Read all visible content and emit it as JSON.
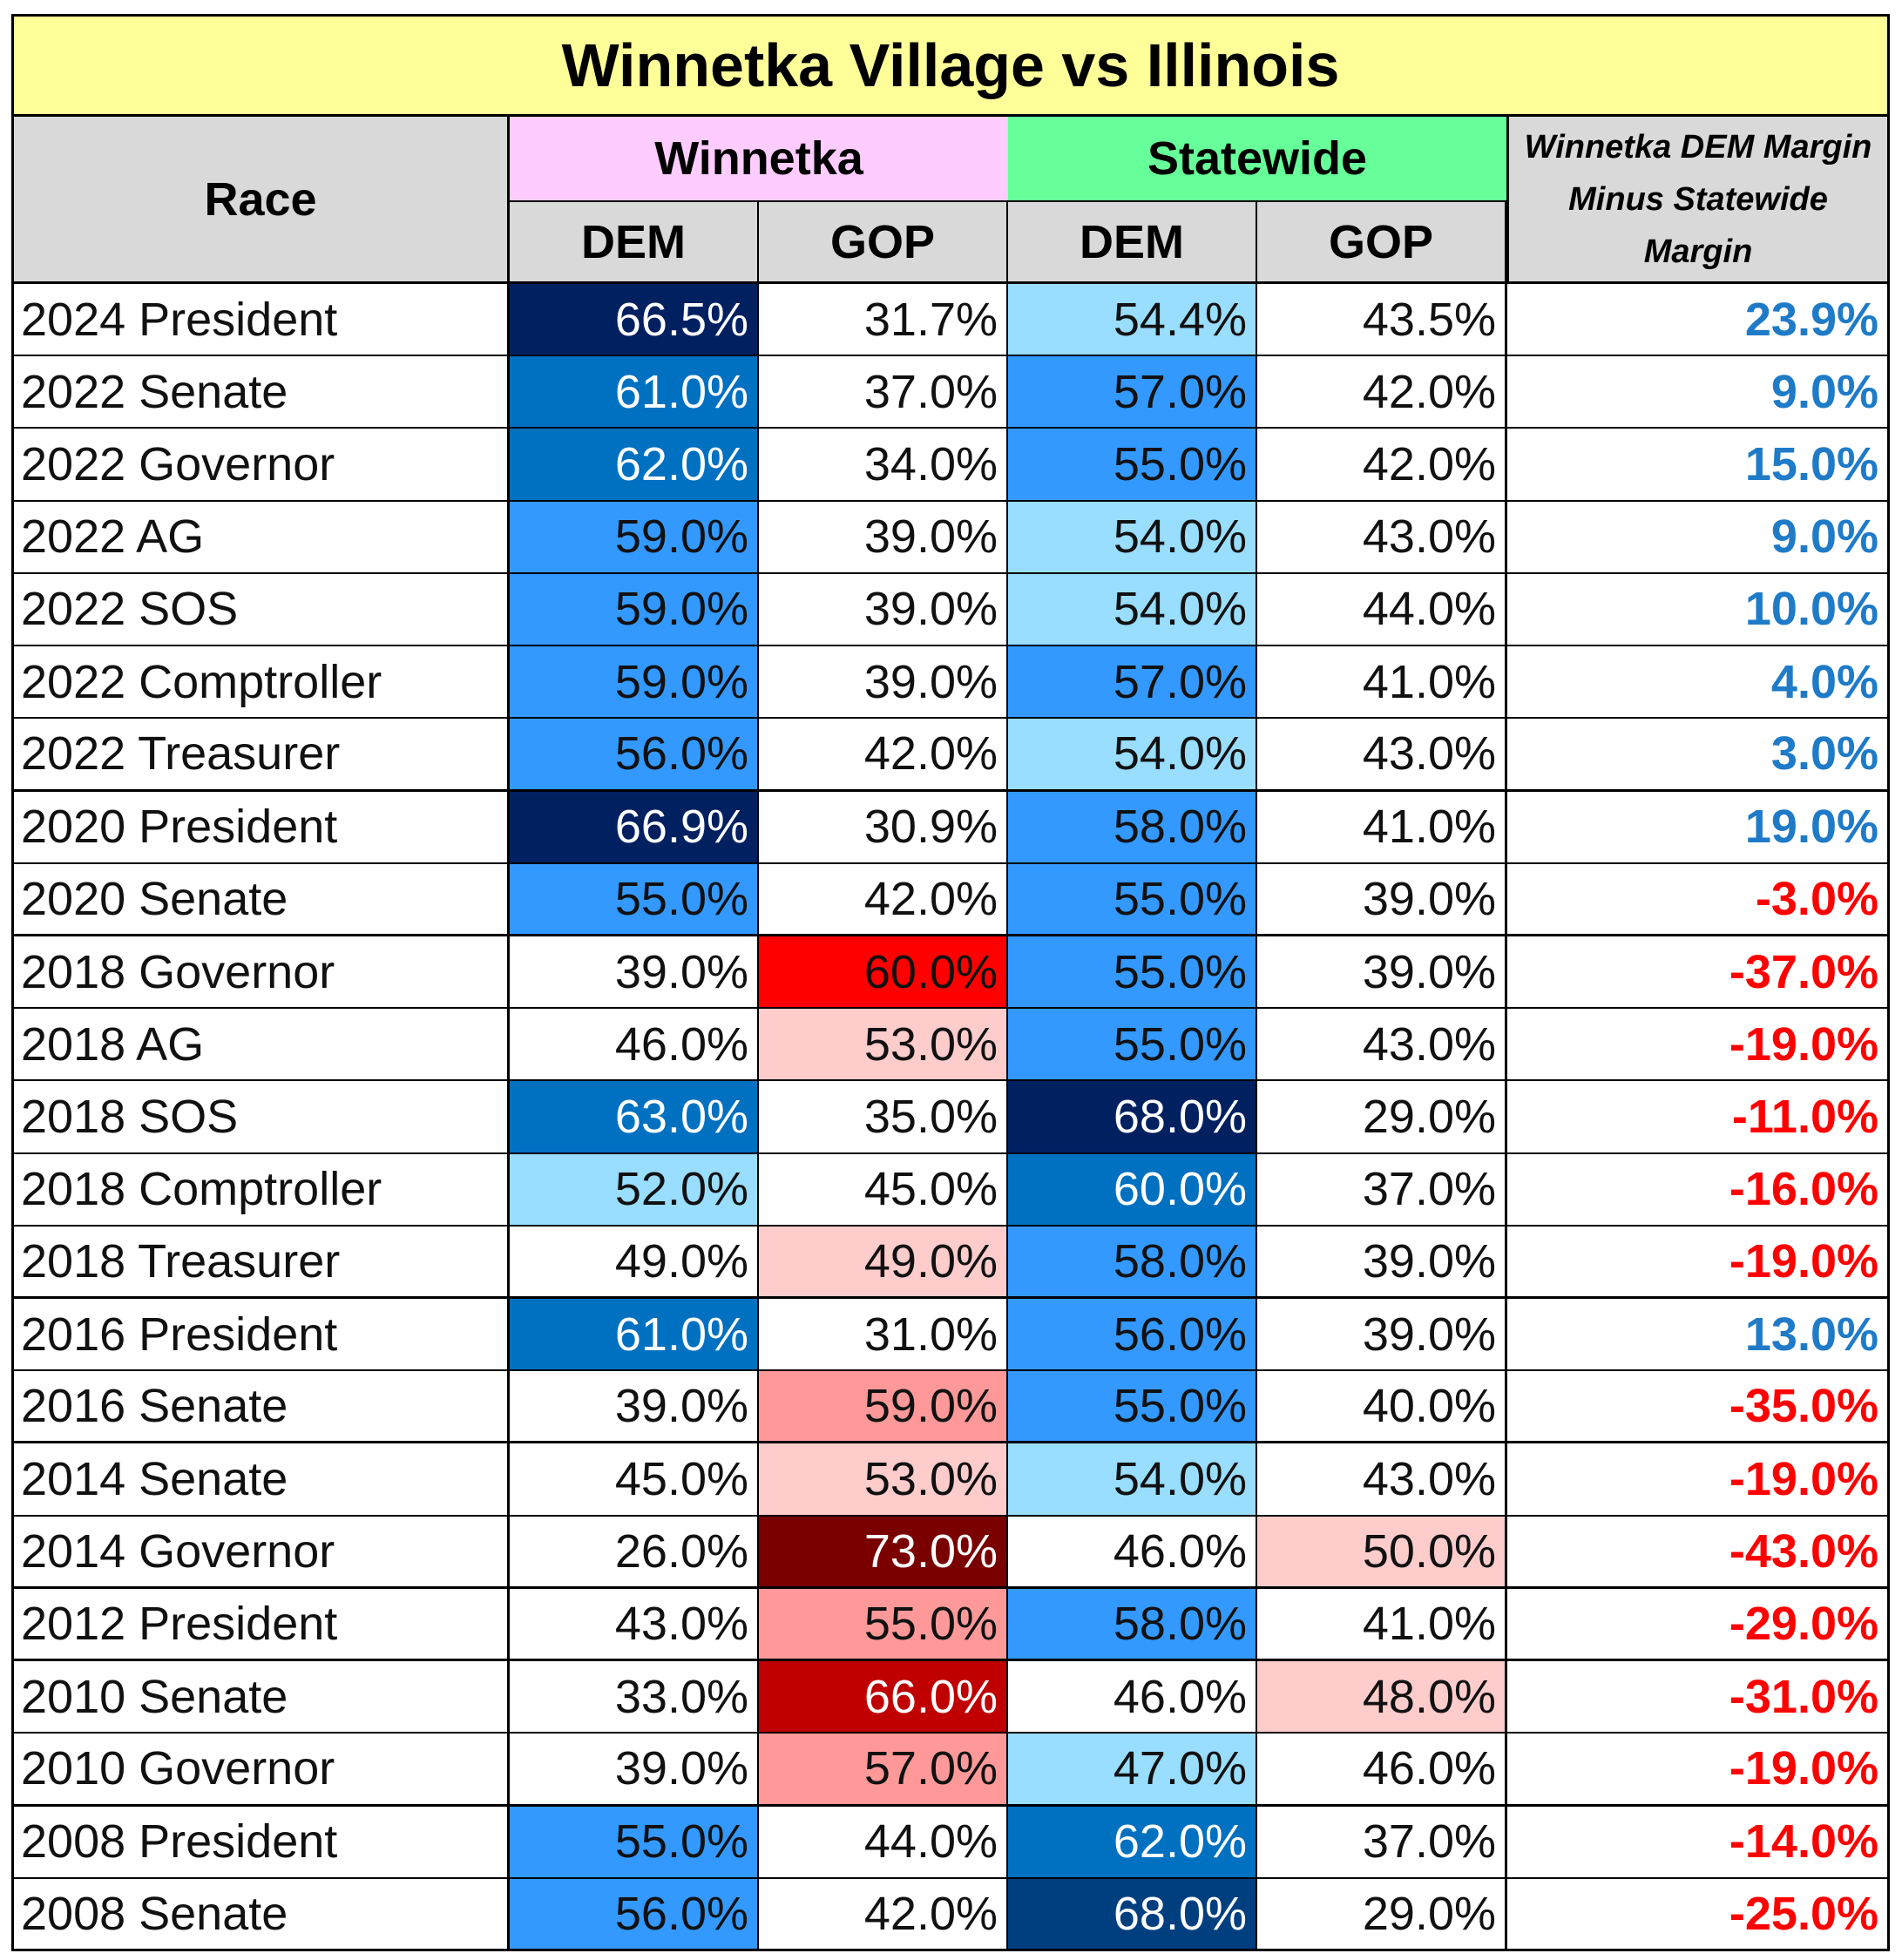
{
  "title": "Winnetka Village vs Illinois",
  "headers": {
    "race": "Race",
    "winnetka": "Winnetka",
    "statewide": "Statewide",
    "dem": "DEM",
    "gop": "GOP",
    "margin_line1": "Winnetka DEM Margin",
    "margin_line2": "Minus Statewide",
    "margin_line3": "Margin"
  },
  "colors": {
    "title_bg": "#ffff99",
    "winnetka_header_bg": "#ffccff",
    "statewide_header_bg": "#66ff99",
    "header_bg": "#d9d9d9",
    "positive_margin": "#1f7bc8",
    "negative_margin": "#ff0000"
  },
  "chart_data": {
    "type": "table",
    "title": "Winnetka Village vs Illinois",
    "columns": [
      "Race",
      "Winnetka DEM",
      "Winnetka GOP",
      "Statewide DEM",
      "Statewide GOP",
      "Winnetka DEM Margin Minus Statewide Margin"
    ],
    "rows": [
      {
        "race": "2024 President",
        "w_dem": "66.5%",
        "w_gop": "31.7%",
        "s_dem": "54.4%",
        "s_gop": "43.5%",
        "margin": "23.9%",
        "fills": [
          "#002060",
          "#ffffff",
          "#99ddff",
          "#ffffff"
        ]
      },
      {
        "race": "2022 Senate",
        "w_dem": "61.0%",
        "w_gop": "37.0%",
        "s_dem": "57.0%",
        "s_gop": "42.0%",
        "margin": "9.0%",
        "fills": [
          "#0070c0",
          "#ffffff",
          "#3399ff",
          "#ffffff"
        ]
      },
      {
        "race": "2022 Governor",
        "w_dem": "62.0%",
        "w_gop": "34.0%",
        "s_dem": "55.0%",
        "s_gop": "42.0%",
        "margin": "15.0%",
        "fills": [
          "#0070c0",
          "#ffffff",
          "#3399ff",
          "#ffffff"
        ]
      },
      {
        "race": "2022 AG",
        "w_dem": "59.0%",
        "w_gop": "39.0%",
        "s_dem": "54.0%",
        "s_gop": "43.0%",
        "margin": "9.0%",
        "fills": [
          "#3399ff",
          "#ffffff",
          "#99ddff",
          "#ffffff"
        ]
      },
      {
        "race": "2022 SOS",
        "w_dem": "59.0%",
        "w_gop": "39.0%",
        "s_dem": "54.0%",
        "s_gop": "44.0%",
        "margin": "10.0%",
        "fills": [
          "#3399ff",
          "#ffffff",
          "#99ddff",
          "#ffffff"
        ]
      },
      {
        "race": "2022 Comptroller",
        "w_dem": "59.0%",
        "w_gop": "39.0%",
        "s_dem": "57.0%",
        "s_gop": "41.0%",
        "margin": "4.0%",
        "fills": [
          "#3399ff",
          "#ffffff",
          "#3399ff",
          "#ffffff"
        ]
      },
      {
        "race": "2022 Treasurer",
        "w_dem": "56.0%",
        "w_gop": "42.0%",
        "s_dem": "54.0%",
        "s_gop": "43.0%",
        "margin": "3.0%",
        "fills": [
          "#3399ff",
          "#ffffff",
          "#99ddff",
          "#ffffff"
        ],
        "group_end": true
      },
      {
        "race": "2020 President",
        "w_dem": "66.9%",
        "w_gop": "30.9%",
        "s_dem": "58.0%",
        "s_gop": "41.0%",
        "margin": "19.0%",
        "fills": [
          "#002060",
          "#ffffff",
          "#3399ff",
          "#ffffff"
        ]
      },
      {
        "race": "2020 Senate",
        "w_dem": "55.0%",
        "w_gop": "42.0%",
        "s_dem": "55.0%",
        "s_gop": "39.0%",
        "margin": "-3.0%",
        "fills": [
          "#3399ff",
          "#ffffff",
          "#3399ff",
          "#ffffff"
        ],
        "group_end": true
      },
      {
        "race": "2018 Governor",
        "w_dem": "39.0%",
        "w_gop": "60.0%",
        "s_dem": "55.0%",
        "s_gop": "39.0%",
        "margin": "-37.0%",
        "fills": [
          "#ffffff",
          "#ff0000",
          "#3399ff",
          "#ffffff"
        ]
      },
      {
        "race": "2018 AG",
        "w_dem": "46.0%",
        "w_gop": "53.0%",
        "s_dem": "55.0%",
        "s_gop": "43.0%",
        "margin": "-19.0%",
        "fills": [
          "#ffffff",
          "#ffcccc",
          "#3399ff",
          "#ffffff"
        ]
      },
      {
        "race": "2018 SOS",
        "w_dem": "63.0%",
        "w_gop": "35.0%",
        "s_dem": "68.0%",
        "s_gop": "29.0%",
        "margin": "-11.0%",
        "fills": [
          "#0070c0",
          "#ffffff",
          "#002060",
          "#ffffff"
        ]
      },
      {
        "race": "2018 Comptroller",
        "w_dem": "52.0%",
        "w_gop": "45.0%",
        "s_dem": "60.0%",
        "s_gop": "37.0%",
        "margin": "-16.0%",
        "fills": [
          "#99ddff",
          "#ffffff",
          "#0070c0",
          "#ffffff"
        ]
      },
      {
        "race": "2018 Treasurer",
        "w_dem": "49.0%",
        "w_gop": "49.0%",
        "s_dem": "58.0%",
        "s_gop": "39.0%",
        "margin": "-19.0%",
        "fills": [
          "#ffffff",
          "#ffcccc",
          "#3399ff",
          "#ffffff"
        ],
        "group_end": true
      },
      {
        "race": "2016 President",
        "w_dem": "61.0%",
        "w_gop": "31.0%",
        "s_dem": "56.0%",
        "s_gop": "39.0%",
        "margin": "13.0%",
        "fills": [
          "#0070c0",
          "#ffffff",
          "#3399ff",
          "#ffffff"
        ]
      },
      {
        "race": "2016 Senate",
        "w_dem": "39.0%",
        "w_gop": "59.0%",
        "s_dem": "55.0%",
        "s_gop": "40.0%",
        "margin": "-35.0%",
        "fills": [
          "#ffffff",
          "#ff9999",
          "#3399ff",
          "#ffffff"
        ],
        "group_end": true
      },
      {
        "race": "2014 Senate",
        "w_dem": "45.0%",
        "w_gop": "53.0%",
        "s_dem": "54.0%",
        "s_gop": "43.0%",
        "margin": "-19.0%",
        "fills": [
          "#ffffff",
          "#ffcccc",
          "#99ddff",
          "#ffffff"
        ]
      },
      {
        "race": "2014 Governor",
        "w_dem": "26.0%",
        "w_gop": "73.0%",
        "s_dem": "46.0%",
        "s_gop": "50.0%",
        "margin": "-43.0%",
        "fills": [
          "#ffffff",
          "#7a0000",
          "#ffffff",
          "#ffcccc"
        ],
        "group_end": true
      },
      {
        "race": "2012 President",
        "w_dem": "43.0%",
        "w_gop": "55.0%",
        "s_dem": "58.0%",
        "s_gop": "41.0%",
        "margin": "-29.0%",
        "fills": [
          "#ffffff",
          "#ff9999",
          "#3399ff",
          "#ffffff"
        ],
        "group_end": true
      },
      {
        "race": "2010 Senate",
        "w_dem": "33.0%",
        "w_gop": "66.0%",
        "s_dem": "46.0%",
        "s_gop": "48.0%",
        "margin": "-31.0%",
        "fills": [
          "#ffffff",
          "#c00000",
          "#ffffff",
          "#ffcccc"
        ]
      },
      {
        "race": "2010 Governor",
        "w_dem": "39.0%",
        "w_gop": "57.0%",
        "s_dem": "47.0%",
        "s_gop": "46.0%",
        "margin": "-19.0%",
        "fills": [
          "#ffffff",
          "#ff9999",
          "#99ddff",
          "#ffffff"
        ],
        "group_end": true
      },
      {
        "race": "2008 President",
        "w_dem": "55.0%",
        "w_gop": "44.0%",
        "s_dem": "62.0%",
        "s_gop": "37.0%",
        "margin": "-14.0%",
        "fills": [
          "#3399ff",
          "#ffffff",
          "#0070c0",
          "#ffffff"
        ]
      },
      {
        "race": "2008 Senate",
        "w_dem": "56.0%",
        "w_gop": "42.0%",
        "s_dem": "68.0%",
        "s_gop": "29.0%",
        "margin": "-25.0%",
        "fills": [
          "#3399ff",
          "#ffffff",
          "#003f7f",
          "#ffffff"
        ],
        "group_end": true
      }
    ]
  }
}
